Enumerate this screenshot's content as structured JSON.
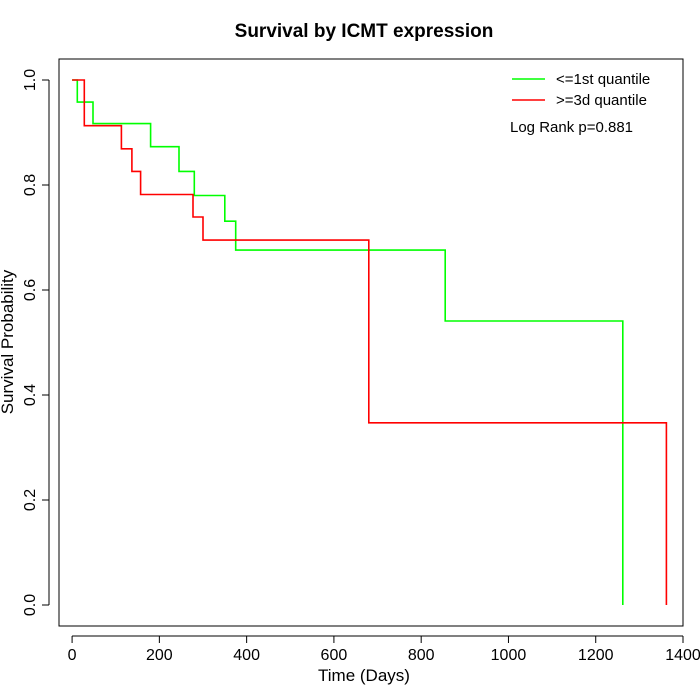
{
  "chart_data": {
    "type": "line",
    "subtype": "kaplan-meier step",
    "title": "Survival by ICMT expression",
    "xlabel": "Time (Days)",
    "ylabel": "Survival Probability",
    "xlim": [
      -30,
      1400
    ],
    "ylim": [
      -0.04,
      1.04
    ],
    "x_ticks": [
      0,
      200,
      400,
      600,
      800,
      1000,
      1200,
      1400
    ],
    "y_ticks": [
      0.0,
      0.2,
      0.4,
      0.6,
      0.8,
      1.0
    ],
    "x_tick_labels": [
      "0",
      "200",
      "400",
      "600",
      "800",
      "1000",
      "1200",
      "1400"
    ],
    "y_tick_labels": [
      "0.0",
      "0.2",
      "0.4",
      "0.6",
      "0.8",
      "1.0"
    ],
    "grid": false,
    "legend_position": "top-right",
    "annotation": "Log Rank p=0.881",
    "series": [
      {
        "name": "<=1st quantile",
        "color": "#00ff00",
        "x": [
          0,
          12,
          48,
          180,
          245,
          280,
          350,
          375,
          855,
          1262,
          1262
        ],
        "y": [
          1.0,
          0.958,
          0.917,
          0.873,
          0.826,
          0.78,
          0.731,
          0.676,
          0.541,
          0.541,
          0.0
        ]
      },
      {
        "name": ">=3d quantile",
        "color": "#ff0000",
        "x": [
          0,
          28,
          113,
          137,
          157,
          277,
          300,
          680,
          1362,
          1362
        ],
        "y": [
          1.0,
          0.913,
          0.869,
          0.826,
          0.782,
          0.739,
          0.695,
          0.347,
          0.347,
          0.0
        ]
      }
    ]
  }
}
